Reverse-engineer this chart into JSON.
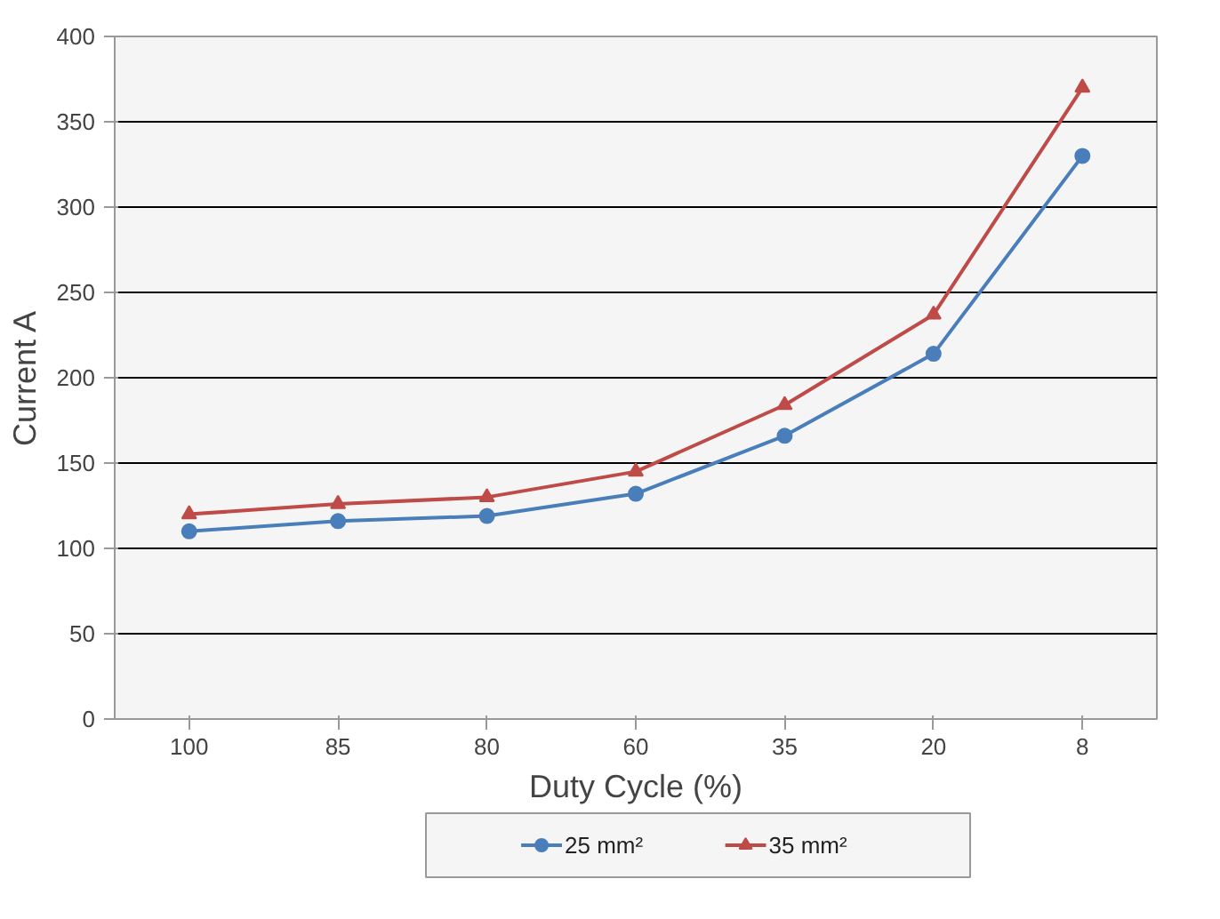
{
  "chart_data": {
    "type": "line",
    "xlabel": "Duty Cycle (%)",
    "ylabel": "Current A",
    "categories": [
      "100",
      "85",
      "80",
      "60",
      "35",
      "20",
      "8"
    ],
    "ylim": [
      0,
      400
    ],
    "yticks": [
      0,
      50,
      100,
      150,
      200,
      250,
      300,
      350,
      400
    ],
    "grid": "y",
    "legend": "bottom",
    "series": [
      {
        "name": "25 mm²",
        "color": "#4a7ebb",
        "marker": "circle",
        "values": [
          110,
          116,
          119,
          132,
          166,
          214,
          330
        ]
      },
      {
        "name": "35 mm²",
        "color": "#be4b48",
        "marker": "triangle",
        "values": [
          120,
          126,
          130,
          145,
          184,
          237,
          370
        ]
      }
    ]
  }
}
